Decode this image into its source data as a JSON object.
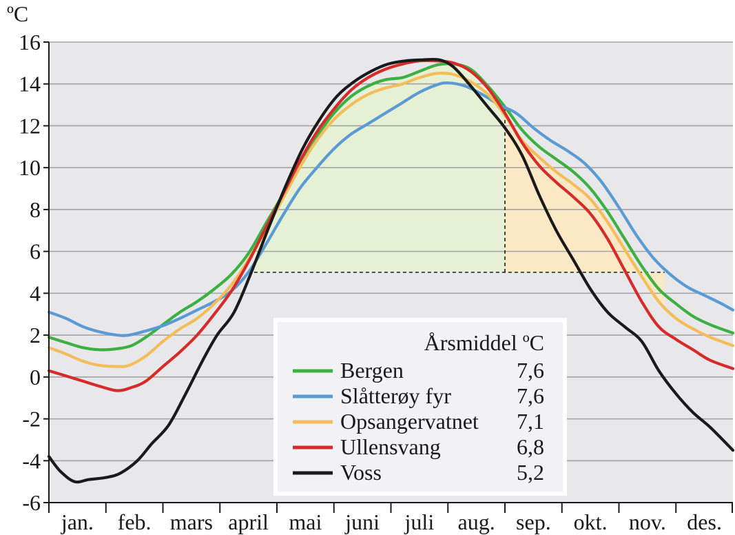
{
  "chart_data": {
    "type": "line",
    "ylabel": "ºC",
    "ylim": [
      -6,
      16
    ],
    "yticks": [
      -6,
      -4,
      -2,
      0,
      2,
      4,
      6,
      8,
      10,
      12,
      14,
      16
    ],
    "ytick_labels": [
      "-6",
      "-4",
      "-2",
      "0",
      "2",
      "4",
      "6",
      "8",
      "10",
      "12",
      "14",
      "16"
    ],
    "categories": [
      "jan.",
      "feb.",
      "mars",
      "april",
      "mai",
      "juni",
      "juli",
      "aug.",
      "sep.",
      "okt.",
      "nov.",
      "des."
    ],
    "xlim": [
      0,
      12
    ],
    "grid": true,
    "background": "#e8e8ea",
    "legend": {
      "placement": "bottom-center",
      "header": "Årsmiddel ºC"
    },
    "threshold": 5,
    "shaded_regions": [
      {
        "x_start": 3.6,
        "x_end": 8.0,
        "y_base": 5,
        "series": "Bergen",
        "color": "#e5f0d4"
      },
      {
        "x_start": 8.0,
        "x_end": 10.8,
        "y_base": 5,
        "series": "Opsangervatnet",
        "color": "#fbe9c6"
      }
    ],
    "series": [
      {
        "name": "Bergen",
        "annual_mean": "7,6",
        "color": "#3cb043",
        "points": [
          [
            0,
            1.9
          ],
          [
            0.35,
            1.6
          ],
          [
            0.6,
            1.4
          ],
          [
            0.9,
            1.3
          ],
          [
            1.2,
            1.35
          ],
          [
            1.45,
            1.5
          ],
          [
            1.7,
            1.9
          ],
          [
            2.0,
            2.5
          ],
          [
            2.3,
            3.1
          ],
          [
            2.6,
            3.6
          ],
          [
            2.9,
            4.2
          ],
          [
            3.2,
            4.9
          ],
          [
            3.5,
            5.9
          ],
          [
            3.8,
            7.3
          ],
          [
            4.1,
            8.7
          ],
          [
            4.4,
            10.2
          ],
          [
            4.7,
            11.5
          ],
          [
            5.0,
            12.6
          ],
          [
            5.3,
            13.4
          ],
          [
            5.6,
            13.9
          ],
          [
            5.9,
            14.2
          ],
          [
            6.2,
            14.3
          ],
          [
            6.5,
            14.6
          ],
          [
            6.8,
            14.9
          ],
          [
            7.1,
            14.95
          ],
          [
            7.4,
            14.7
          ],
          [
            7.7,
            13.9
          ],
          [
            8.0,
            12.9
          ],
          [
            8.3,
            11.8
          ],
          [
            8.6,
            11.0
          ],
          [
            8.9,
            10.4
          ],
          [
            9.2,
            9.8
          ],
          [
            9.5,
            9.0
          ],
          [
            9.8,
            7.9
          ],
          [
            10.1,
            6.6
          ],
          [
            10.4,
            5.3
          ],
          [
            10.7,
            4.2
          ],
          [
            11.0,
            3.5
          ],
          [
            11.3,
            2.9
          ],
          [
            11.6,
            2.5
          ],
          [
            12.0,
            2.1
          ]
        ]
      },
      {
        "name": "Slåtterøy fyr",
        "annual_mean": "7,6",
        "color": "#5b9bd5",
        "points": [
          [
            0,
            3.1
          ],
          [
            0.3,
            2.8
          ],
          [
            0.6,
            2.4
          ],
          [
            0.9,
            2.15
          ],
          [
            1.2,
            2.0
          ],
          [
            1.4,
            2.0
          ],
          [
            1.7,
            2.2
          ],
          [
            2.0,
            2.45
          ],
          [
            2.3,
            2.8
          ],
          [
            2.6,
            3.2
          ],
          [
            2.9,
            3.6
          ],
          [
            3.2,
            4.1
          ],
          [
            3.5,
            5.0
          ],
          [
            3.8,
            6.3
          ],
          [
            4.1,
            7.7
          ],
          [
            4.4,
            9.0
          ],
          [
            4.7,
            10.0
          ],
          [
            5.0,
            10.9
          ],
          [
            5.3,
            11.6
          ],
          [
            5.6,
            12.1
          ],
          [
            5.9,
            12.6
          ],
          [
            6.2,
            13.1
          ],
          [
            6.5,
            13.6
          ],
          [
            6.8,
            13.95
          ],
          [
            7.0,
            14.05
          ],
          [
            7.3,
            13.9
          ],
          [
            7.6,
            13.5
          ],
          [
            7.9,
            13.0
          ],
          [
            8.2,
            12.6
          ],
          [
            8.5,
            11.9
          ],
          [
            8.8,
            11.3
          ],
          [
            9.1,
            10.8
          ],
          [
            9.4,
            10.2
          ],
          [
            9.7,
            9.3
          ],
          [
            10.0,
            8.1
          ],
          [
            10.3,
            6.8
          ],
          [
            10.6,
            5.7
          ],
          [
            10.9,
            4.9
          ],
          [
            11.2,
            4.3
          ],
          [
            11.5,
            3.9
          ],
          [
            11.8,
            3.5
          ],
          [
            12.0,
            3.2
          ]
        ]
      },
      {
        "name": "Opsangervatnet",
        "annual_mean": "7,1",
        "color": "#f4bd5a",
        "points": [
          [
            0,
            1.4
          ],
          [
            0.3,
            1.1
          ],
          [
            0.6,
            0.75
          ],
          [
            0.9,
            0.55
          ],
          [
            1.2,
            0.5
          ],
          [
            1.4,
            0.55
          ],
          [
            1.7,
            1.0
          ],
          [
            2.0,
            1.7
          ],
          [
            2.3,
            2.3
          ],
          [
            2.6,
            2.8
          ],
          [
            2.9,
            3.5
          ],
          [
            3.2,
            4.4
          ],
          [
            3.5,
            5.6
          ],
          [
            3.8,
            7.0
          ],
          [
            4.1,
            8.5
          ],
          [
            4.4,
            10.0
          ],
          [
            4.7,
            11.3
          ],
          [
            5.0,
            12.3
          ],
          [
            5.3,
            13.0
          ],
          [
            5.6,
            13.5
          ],
          [
            5.9,
            13.8
          ],
          [
            6.2,
            14.0
          ],
          [
            6.5,
            14.3
          ],
          [
            6.8,
            14.5
          ],
          [
            7.1,
            14.45
          ],
          [
            7.4,
            14.1
          ],
          [
            7.7,
            13.5
          ],
          [
            8.0,
            12.5
          ],
          [
            8.3,
            11.3
          ],
          [
            8.6,
            10.5
          ],
          [
            8.9,
            9.8
          ],
          [
            9.2,
            9.2
          ],
          [
            9.5,
            8.5
          ],
          [
            9.8,
            7.4
          ],
          [
            10.1,
            6.1
          ],
          [
            10.4,
            4.8
          ],
          [
            10.7,
            3.6
          ],
          [
            11.0,
            2.8
          ],
          [
            11.3,
            2.3
          ],
          [
            11.6,
            1.9
          ],
          [
            12.0,
            1.5
          ]
        ]
      },
      {
        "name": "Ullensvang",
        "annual_mean": "6,8",
        "color": "#d62b2b",
        "points": [
          [
            0,
            0.3
          ],
          [
            0.3,
            0.05
          ],
          [
            0.6,
            -0.2
          ],
          [
            0.9,
            -0.45
          ],
          [
            1.2,
            -0.65
          ],
          [
            1.45,
            -0.5
          ],
          [
            1.7,
            -0.2
          ],
          [
            2.0,
            0.5
          ],
          [
            2.3,
            1.2
          ],
          [
            2.6,
            2.0
          ],
          [
            2.9,
            3.0
          ],
          [
            3.2,
            4.1
          ],
          [
            3.5,
            5.5
          ],
          [
            3.8,
            7.1
          ],
          [
            4.1,
            8.7
          ],
          [
            4.4,
            10.3
          ],
          [
            4.7,
            11.7
          ],
          [
            5.0,
            12.8
          ],
          [
            5.3,
            13.7
          ],
          [
            5.6,
            14.3
          ],
          [
            5.9,
            14.7
          ],
          [
            6.2,
            14.95
          ],
          [
            6.5,
            15.1
          ],
          [
            6.8,
            15.1
          ],
          [
            7.1,
            15.0
          ],
          [
            7.4,
            14.6
          ],
          [
            7.7,
            13.8
          ],
          [
            8.0,
            12.6
          ],
          [
            8.3,
            11.2
          ],
          [
            8.6,
            10.1
          ],
          [
            8.9,
            9.3
          ],
          [
            9.2,
            8.6
          ],
          [
            9.5,
            7.8
          ],
          [
            9.8,
            6.6
          ],
          [
            10.1,
            5.1
          ],
          [
            10.4,
            3.6
          ],
          [
            10.7,
            2.4
          ],
          [
            11.0,
            1.8
          ],
          [
            11.3,
            1.3
          ],
          [
            11.6,
            0.8
          ],
          [
            12.0,
            0.4
          ]
        ]
      },
      {
        "name": "Voss",
        "annual_mean": "5,2",
        "color": "#1a1a1a",
        "points": [
          [
            0,
            -3.8
          ],
          [
            0.2,
            -4.5
          ],
          [
            0.45,
            -5.0
          ],
          [
            0.7,
            -4.9
          ],
          [
            1.0,
            -4.8
          ],
          [
            1.25,
            -4.6
          ],
          [
            1.55,
            -4.0
          ],
          [
            1.8,
            -3.2
          ],
          [
            2.1,
            -2.3
          ],
          [
            2.4,
            -0.8
          ],
          [
            2.7,
            0.8
          ],
          [
            2.95,
            2.0
          ],
          [
            3.25,
            3.1
          ],
          [
            3.55,
            5.0
          ],
          [
            3.85,
            7.1
          ],
          [
            4.15,
            9.1
          ],
          [
            4.45,
            10.9
          ],
          [
            4.75,
            12.3
          ],
          [
            5.05,
            13.4
          ],
          [
            5.35,
            14.1
          ],
          [
            5.65,
            14.6
          ],
          [
            5.95,
            14.95
          ],
          [
            6.25,
            15.1
          ],
          [
            6.55,
            15.15
          ],
          [
            6.85,
            15.15
          ],
          [
            7.1,
            14.8
          ],
          [
            7.4,
            13.9
          ],
          [
            7.7,
            12.9
          ],
          [
            8.0,
            11.9
          ],
          [
            8.3,
            10.6
          ],
          [
            8.6,
            8.7
          ],
          [
            8.9,
            7.0
          ],
          [
            9.2,
            5.6
          ],
          [
            9.5,
            4.2
          ],
          [
            9.8,
            3.1
          ],
          [
            10.1,
            2.4
          ],
          [
            10.4,
            1.7
          ],
          [
            10.7,
            0.3
          ],
          [
            11.0,
            -0.8
          ],
          [
            11.3,
            -1.7
          ],
          [
            11.6,
            -2.4
          ],
          [
            12.0,
            -3.5
          ]
        ]
      }
    ]
  }
}
